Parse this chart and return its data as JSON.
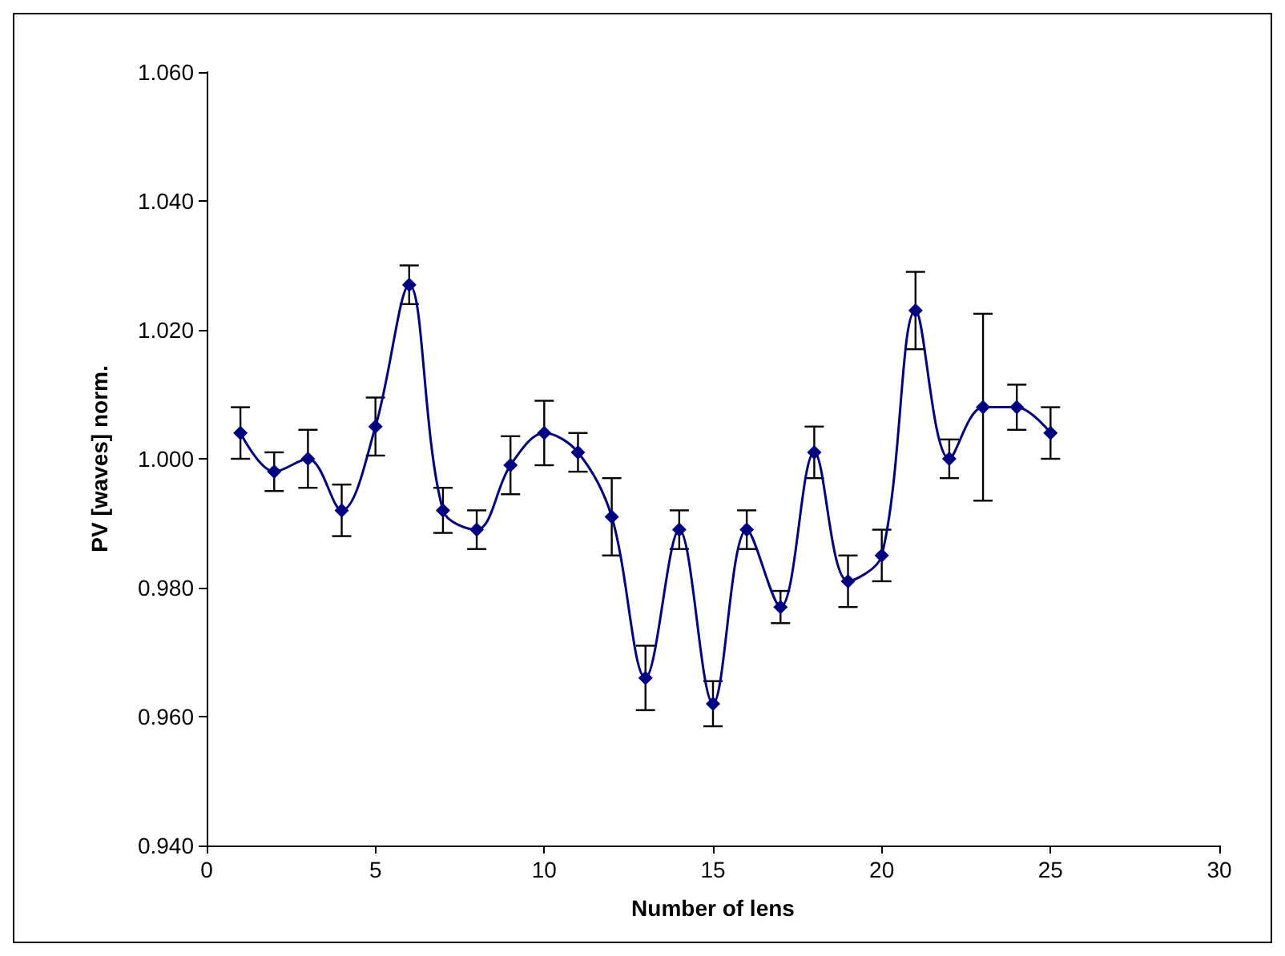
{
  "chart_data": {
    "type": "line",
    "xlabel": "Number of lens",
    "ylabel": "PV [waves] norm.",
    "x": [
      1,
      2,
      3,
      4,
      5,
      6,
      7,
      8,
      9,
      10,
      11,
      12,
      13,
      14,
      15,
      16,
      17,
      18,
      19,
      20,
      21,
      22,
      23,
      24,
      25
    ],
    "series": [
      {
        "color": "#000080",
        "values": [
          1.004,
          0.998,
          1.0,
          0.992,
          1.005,
          1.027,
          0.992,
          0.989,
          0.999,
          1.004,
          1.001,
          0.991,
          0.966,
          0.989,
          0.962,
          0.989,
          0.977,
          1.001,
          0.981,
          0.985,
          1.023,
          1.0,
          1.008,
          1.008,
          1.004
        ],
        "errors": [
          0.004,
          0.003,
          0.0045,
          0.004,
          0.0045,
          0.003,
          0.0035,
          0.003,
          0.0045,
          0.005,
          0.003,
          0.006,
          0.005,
          0.003,
          0.0035,
          0.003,
          0.0025,
          0.004,
          0.004,
          0.004,
          0.006,
          0.003,
          0.0145,
          0.0035,
          0.004
        ]
      }
    ],
    "xlim": [
      0,
      30
    ],
    "xticks": [
      0,
      5,
      10,
      15,
      20,
      25,
      30
    ],
    "ylim": [
      0.94,
      1.06
    ],
    "yticks": [
      {
        "value": 0.94,
        "label": "0.940"
      },
      {
        "value": 0.96,
        "label": "0.960"
      },
      {
        "value": 0.98,
        "label": "0.980"
      },
      {
        "value": 1.0,
        "label": "1.000"
      },
      {
        "value": 1.02,
        "label": "1.020"
      },
      {
        "value": 1.04,
        "label": "1.040"
      },
      {
        "value": 1.06,
        "label": "1.060"
      }
    ],
    "grid": false,
    "marker": "diamond",
    "line_style": "solid"
  }
}
